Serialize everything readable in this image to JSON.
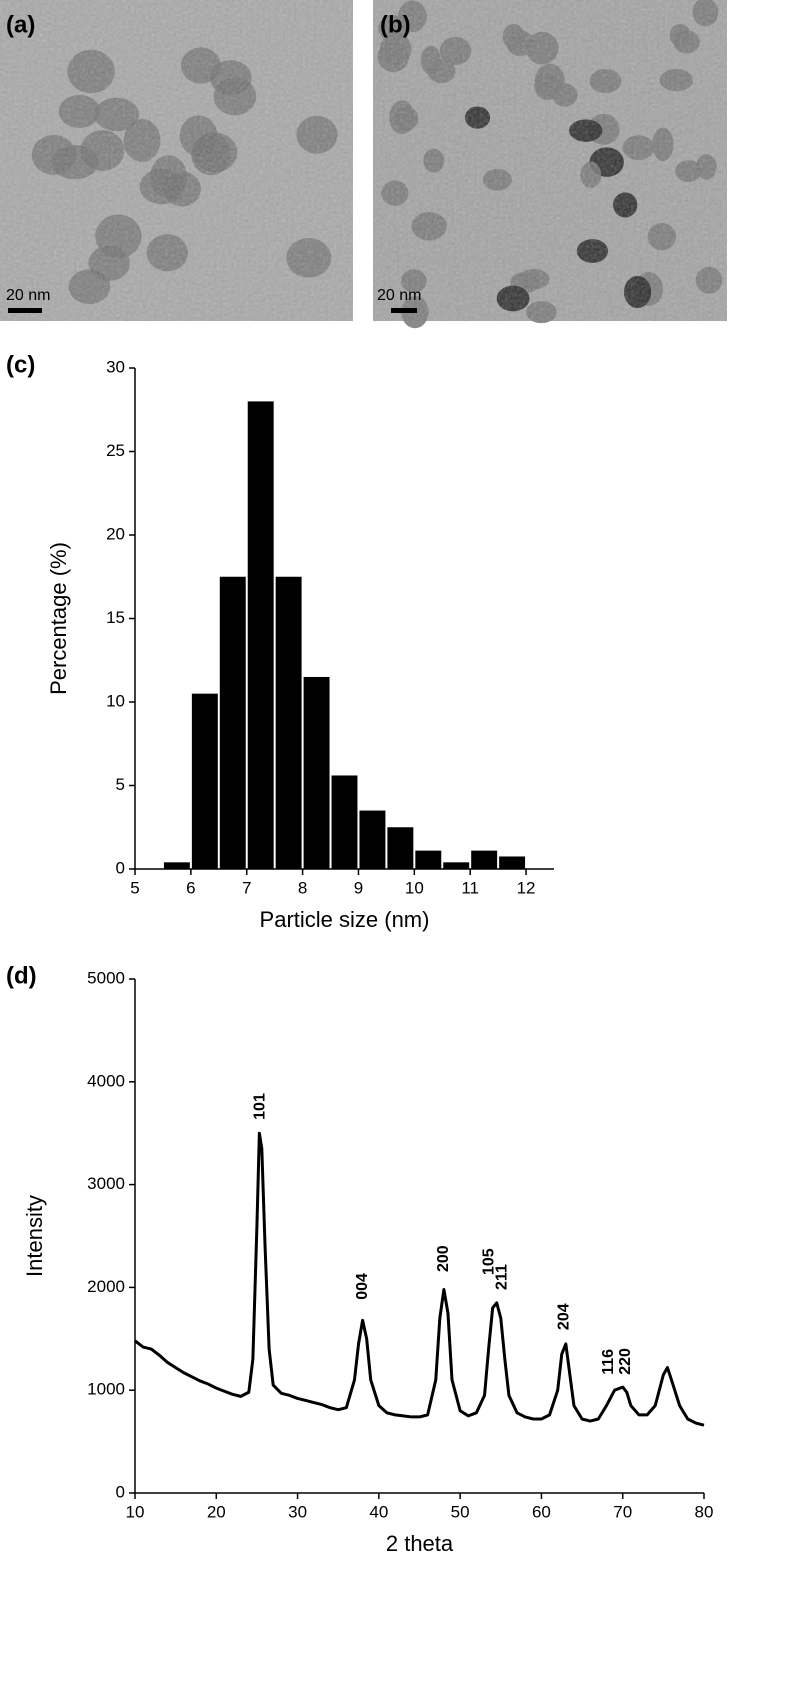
{
  "images": [
    {
      "label": "(a)",
      "scale_bar": "20 nm"
    },
    {
      "label": "(b)",
      "scale_bar": "20 nm"
    }
  ],
  "chart_data": [
    {
      "type": "histogram",
      "label": "(c)",
      "x_label": "Particle size (nm)",
      "y_label": "Percentage (%)",
      "color": "#000000",
      "bins": [
        5.5,
        6,
        6.5,
        7,
        7.5,
        8,
        8.5,
        9,
        9.5,
        10,
        10.5,
        11,
        11.5,
        12
      ],
      "values": [
        0.4,
        10.5,
        17.5,
        28,
        17.5,
        11.5,
        5.6,
        3.5,
        2.5,
        1.1,
        0.4,
        1.1,
        0.75
      ],
      "xlim": [
        5,
        12.5
      ],
      "xticks": [
        5,
        6,
        7,
        8,
        9,
        10,
        11,
        12
      ],
      "ylim": [
        0,
        30
      ],
      "yticks": [
        0,
        5,
        10,
        15,
        20,
        25,
        30
      ]
    },
    {
      "type": "line",
      "label": "(d)",
      "x_label": "2 theta",
      "y_label": "Intensity",
      "color": "#000000",
      "x": [
        10,
        11,
        12,
        13,
        14,
        15,
        16,
        17,
        18,
        19,
        20,
        21,
        22,
        23,
        24,
        24.5,
        25,
        25.3,
        25.6,
        26,
        26.5,
        27,
        28,
        29,
        30,
        31,
        32,
        33,
        34,
        35,
        36,
        37,
        37.5,
        38,
        38.5,
        39,
        40,
        41,
        42,
        43,
        44,
        45,
        46,
        47,
        47.5,
        48,
        48.5,
        49,
        50,
        51,
        52,
        53,
        53.5,
        54,
        54.5,
        55,
        55.5,
        56,
        57,
        58,
        59,
        60,
        61,
        62,
        62.5,
        63,
        63.5,
        64,
        65,
        66,
        67,
        68,
        69,
        70,
        70.5,
        71,
        72,
        73,
        74,
        75,
        75.5,
        76,
        77,
        78,
        79,
        80
      ],
      "values": [
        1480,
        1420,
        1400,
        1340,
        1270,
        1220,
        1170,
        1130,
        1090,
        1060,
        1020,
        990,
        960,
        940,
        980,
        1300,
        2600,
        3500,
        3350,
        2400,
        1400,
        1050,
        970,
        950,
        920,
        900,
        880,
        860,
        830,
        810,
        830,
        1100,
        1450,
        1680,
        1500,
        1100,
        850,
        780,
        760,
        750,
        740,
        740,
        760,
        1100,
        1700,
        1980,
        1750,
        1100,
        800,
        750,
        780,
        950,
        1400,
        1800,
        1850,
        1700,
        1300,
        950,
        780,
        740,
        720,
        720,
        760,
        1000,
        1350,
        1450,
        1150,
        850,
        720,
        700,
        720,
        850,
        1000,
        1030,
        980,
        850,
        760,
        760,
        850,
        1150,
        1220,
        1100,
        850,
        720,
        680,
        660
      ],
      "xlim": [
        10,
        80
      ],
      "xticks": [
        10,
        20,
        30,
        40,
        50,
        60,
        70,
        80
      ],
      "ylim": [
        0,
        5000
      ],
      "yticks": [
        0,
        1000,
        2000,
        3000,
        4000,
        5000
      ],
      "annotations": [
        {
          "text": "101",
          "x": 25.4,
          "y": 3630
        },
        {
          "text": "004",
          "x": 38,
          "y": 1880
        },
        {
          "text": "200",
          "x": 48,
          "y": 2150
        },
        {
          "text": "105",
          "x": 53.6,
          "y": 2120
        },
        {
          "text": "211",
          "x": 55.2,
          "y": 1975
        },
        {
          "text": "204",
          "x": 62.8,
          "y": 1585
        },
        {
          "text": "116",
          "x": 68.3,
          "y": 1150
        },
        {
          "text": "220",
          "x": 70.4,
          "y": 1150
        }
      ]
    }
  ]
}
